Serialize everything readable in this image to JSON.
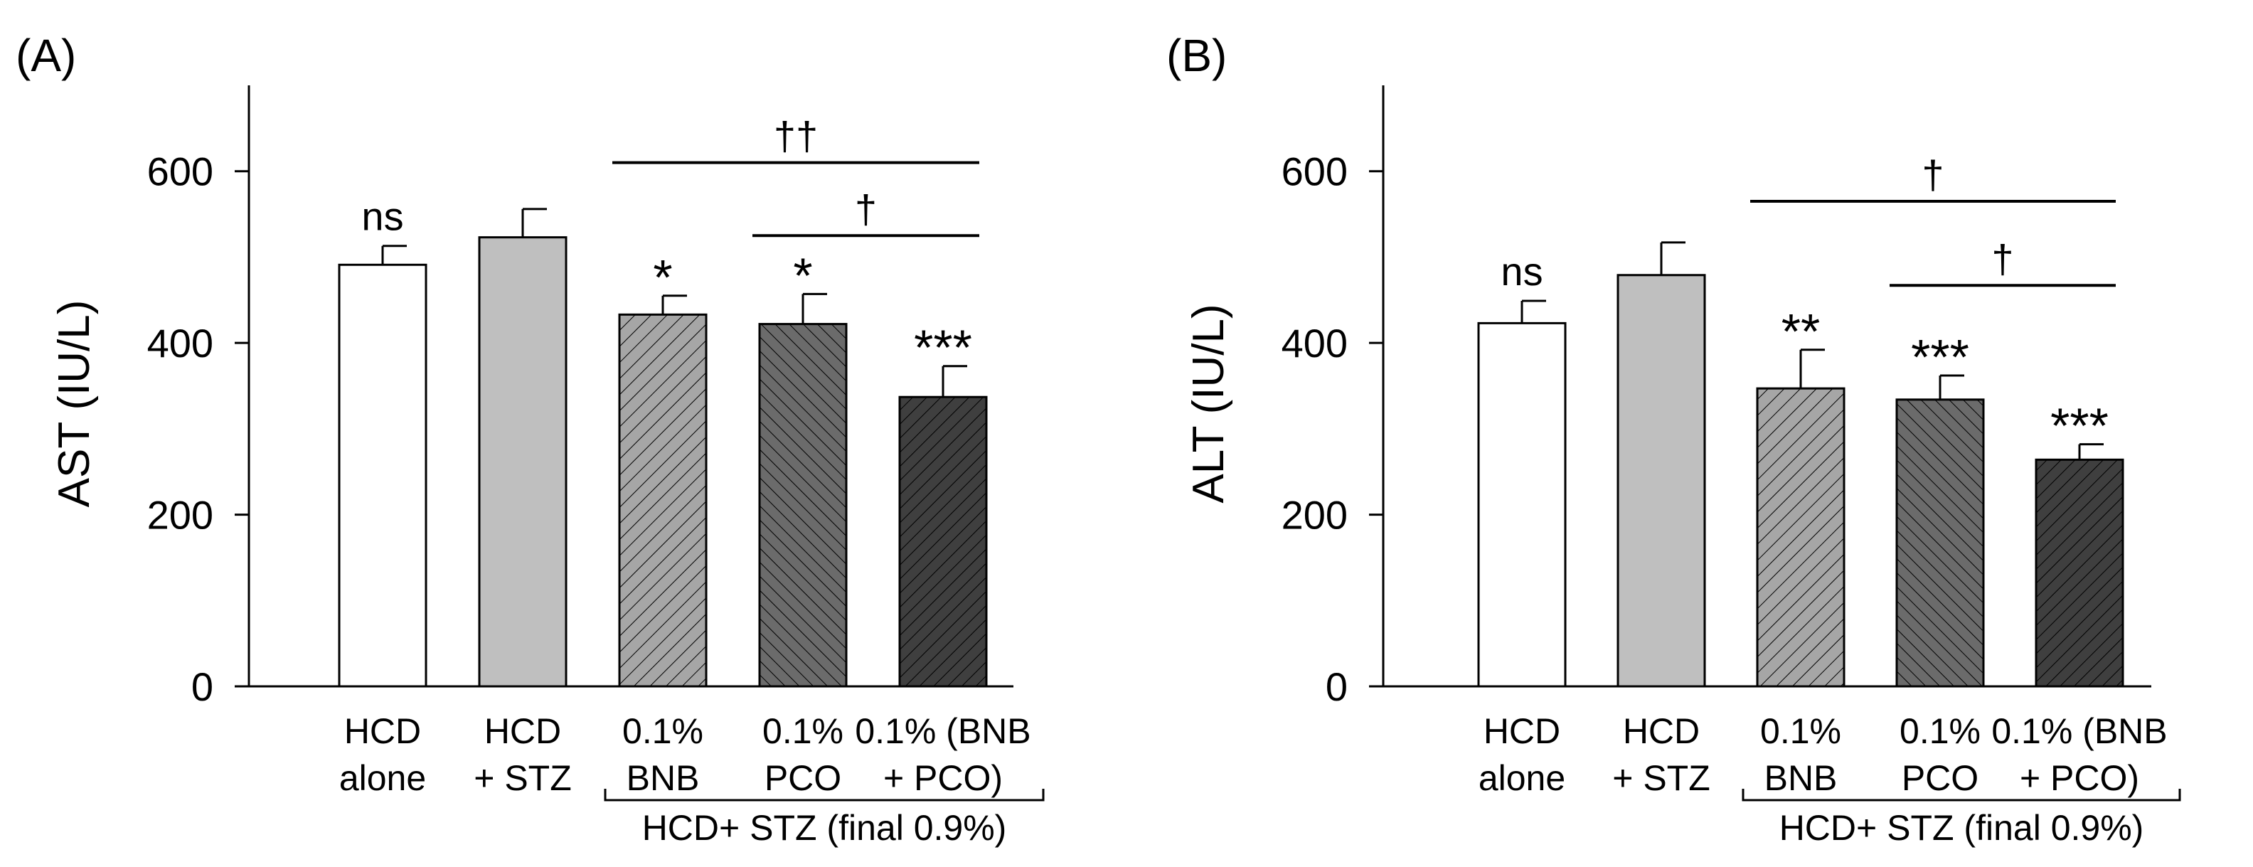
{
  "chart_data": [
    {
      "type": "bar",
      "panel_label": "(A)",
      "ylabel": "AST (IU/L)",
      "ylim": [
        0,
        700
      ],
      "yticks": [
        0,
        200,
        400,
        600
      ],
      "categories": [
        [
          "HCD",
          "alone"
        ],
        [
          "HCD",
          "+ STZ"
        ],
        [
          "0.1%",
          "BNB"
        ],
        [
          "0.1%",
          "PCO"
        ],
        [
          "0.1% (BNB",
          "+ PCO)"
        ]
      ],
      "values": [
        491,
        523,
        433,
        422,
        337
      ],
      "errors": [
        22,
        33,
        22,
        35,
        36
      ],
      "annotations": [
        "ns",
        "",
        "*",
        "*",
        "***"
      ],
      "group_label": "HCD+ STZ (final 0.9%)",
      "comparisons": [
        {
          "from": 2,
          "to": 4,
          "symbol": "††",
          "y_data": 610
        },
        {
          "from": 3,
          "to": 4,
          "symbol": "†",
          "y_data": 525
        }
      ]
    },
    {
      "type": "bar",
      "panel_label": "(B)",
      "ylabel": "ALT (IU/L)",
      "ylim": [
        0,
        700
      ],
      "yticks": [
        0,
        200,
        400,
        600
      ],
      "categories": [
        [
          "HCD",
          "alone"
        ],
        [
          "HCD",
          "+ STZ"
        ],
        [
          "0.1%",
          "BNB"
        ],
        [
          "0.1%",
          "PCO"
        ],
        [
          "0.1% (BNB",
          "+ PCO)"
        ]
      ],
      "values": [
        423,
        479,
        347,
        334,
        264
      ],
      "errors": [
        26,
        38,
        45,
        28,
        18
      ],
      "annotations": [
        "ns",
        "",
        "**",
        "***",
        "***"
      ],
      "group_label": "HCD+ STZ (final 0.9%)",
      "comparisons": [
        {
          "from": 2,
          "to": 4,
          "symbol": "†",
          "y_data": 565
        },
        {
          "from": 3,
          "to": 4,
          "symbol": "†",
          "y_data": 467
        }
      ]
    }
  ],
  "style": {
    "fills": [
      "#ffffff",
      "#bfbfbf",
      "#a6a6a6",
      "#6b6b6b",
      "#3f3f3f"
    ],
    "hatch": [
      "none",
      "none",
      "back",
      "forward",
      "back"
    ],
    "line_color": "#000000"
  }
}
